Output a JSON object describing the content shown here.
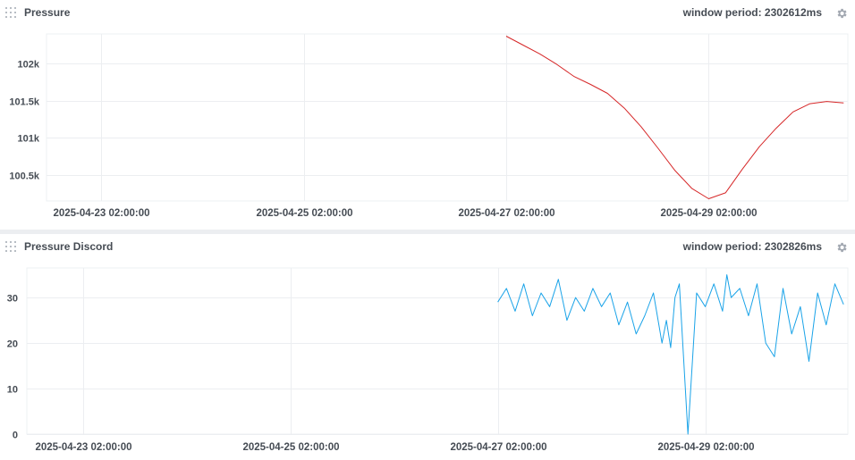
{
  "panels": [
    {
      "title": "Pressure",
      "window_period": "window period: 2302612ms",
      "icons": {
        "drag": "drag-handle-icon",
        "settings": "gear-icon"
      }
    },
    {
      "title": "Pressure Discord",
      "window_period": "window period: 2302826ms",
      "icons": {
        "drag": "drag-handle-icon",
        "settings": "gear-icon"
      }
    }
  ],
  "chart_data": [
    {
      "type": "line",
      "title": "Pressure",
      "color": "#d62728",
      "x_ticks": [
        "2025-04-23 02:00:00",
        "2025-04-25 02:00:00",
        "2025-04-27 02:00:00",
        "2025-04-29 02:00:00"
      ],
      "y_ticks": [
        "100.5k",
        "101k",
        "101.5k",
        "102k"
      ],
      "xlim": [
        "2025-04-22 13:00",
        "2025-04-30 11:00"
      ],
      "ylim": [
        100150,
        102400
      ],
      "grid": true,
      "series": [
        {
          "x": [
            "2025-04-27 02:00",
            "2025-04-27 06:00",
            "2025-04-27 10:00",
            "2025-04-27 14:00",
            "2025-04-27 18:00",
            "2025-04-27 22:00",
            "2025-04-28 02:00",
            "2025-04-28 06:00",
            "2025-04-28 10:00",
            "2025-04-28 14:00",
            "2025-04-28 18:00",
            "2025-04-28 22:00",
            "2025-04-29 02:00",
            "2025-04-29 06:00",
            "2025-04-29 10:00",
            "2025-04-29 14:00",
            "2025-04-29 18:00",
            "2025-04-29 22:00",
            "2025-04-30 02:00",
            "2025-04-30 06:00",
            "2025-04-30 10:00"
          ],
          "values": [
            102370,
            102250,
            102130,
            101990,
            101830,
            101720,
            101600,
            101400,
            101150,
            100860,
            100560,
            100320,
            100180,
            100260,
            100580,
            100880,
            101130,
            101350,
            101460,
            101490,
            101470
          ]
        }
      ]
    },
    {
      "type": "line",
      "title": "Pressure Discord",
      "color": "#1aa3e8",
      "x_ticks": [
        "2025-04-23 02:00:00",
        "2025-04-25 02:00:00",
        "2025-04-27 02:00:00",
        "2025-04-29 02:00:00"
      ],
      "y_ticks": [
        "0",
        "10",
        "20",
        "30"
      ],
      "xlim": [
        "2025-04-22 13:00",
        "2025-04-30 11:00"
      ],
      "ylim": [
        0,
        36.5
      ],
      "grid": true,
      "series": [
        {
          "x": [
            "2025-04-27 02:00",
            "2025-04-27 04:00",
            "2025-04-27 06:00",
            "2025-04-27 08:00",
            "2025-04-27 10:00",
            "2025-04-27 12:00",
            "2025-04-27 14:00",
            "2025-04-27 16:00",
            "2025-04-27 18:00",
            "2025-04-27 20:00",
            "2025-04-27 22:00",
            "2025-04-28 00:00",
            "2025-04-28 02:00",
            "2025-04-28 04:00",
            "2025-04-28 06:00",
            "2025-04-28 08:00",
            "2025-04-28 10:00",
            "2025-04-28 12:00",
            "2025-04-28 14:00",
            "2025-04-28 16:00",
            "2025-04-28 17:00",
            "2025-04-28 18:00",
            "2025-04-28 19:00",
            "2025-04-28 20:00",
            "2025-04-28 22:00",
            "2025-04-29 00:00",
            "2025-04-29 02:00",
            "2025-04-29 04:00",
            "2025-04-29 06:00",
            "2025-04-29 07:00",
            "2025-04-29 08:00",
            "2025-04-29 10:00",
            "2025-04-29 12:00",
            "2025-04-29 14:00",
            "2025-04-29 16:00",
            "2025-04-29 18:00",
            "2025-04-29 20:00",
            "2025-04-29 22:00",
            "2025-04-30 00:00",
            "2025-04-30 02:00",
            "2025-04-30 04:00",
            "2025-04-30 06:00",
            "2025-04-30 08:00",
            "2025-04-30 10:00"
          ],
          "values": [
            29,
            32,
            27,
            33,
            26,
            31,
            28,
            34,
            25,
            30,
            27,
            32,
            28,
            31,
            24,
            29,
            22,
            26,
            31,
            20,
            25,
            19,
            30,
            33,
            0,
            31,
            28,
            33,
            27,
            35,
            30,
            32,
            26,
            33,
            20,
            17,
            32,
            22,
            28,
            16,
            31,
            24,
            33,
            28.5
          ]
        }
      ]
    }
  ]
}
